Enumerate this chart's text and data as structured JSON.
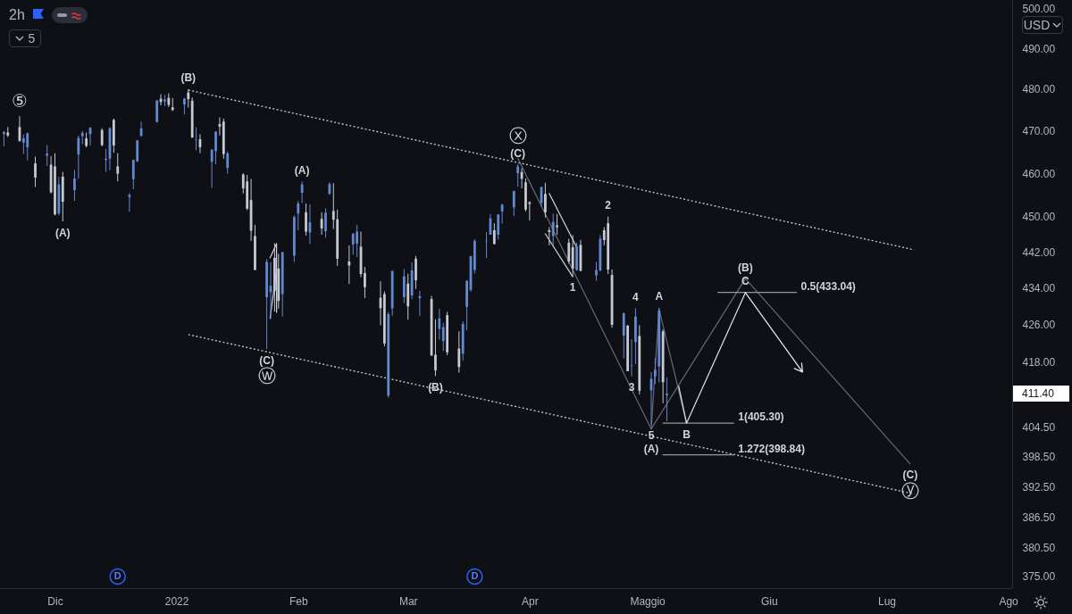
{
  "chart_data": {
    "type": "candlestick",
    "title": "2h",
    "ylabel": "USD",
    "log": "y",
    "xlim": [
      "2021-11-17",
      "2022-08-02"
    ],
    "xticks": [
      {
        "value": "2021-12-01",
        "label": "Dic"
      },
      {
        "value": "2022-01-01",
        "label": "2022"
      },
      {
        "value": "2022-02-01",
        "label": "Feb"
      },
      {
        "value": "2022-03-01",
        "label": "Mar"
      },
      {
        "value": "2022-04-01",
        "label": "Apr"
      },
      {
        "value": "2022-05-01",
        "label": "Maggio"
      },
      {
        "value": "2022-06-01",
        "label": "Giu"
      },
      {
        "value": "2022-07-01",
        "label": "Lug"
      },
      {
        "value": "2022-08-01",
        "label": "Ago"
      }
    ],
    "ylim": [
      372.8,
      502.2
    ],
    "yticks": [
      {
        "value": 375,
        "label": "375.00"
      },
      {
        "value": 380.5,
        "label": "380.50"
      },
      {
        "value": 386.5,
        "label": "386.50"
      },
      {
        "value": 392.5,
        "label": "392.50"
      },
      {
        "value": 398.5,
        "label": "398.50"
      },
      {
        "value": 404.5,
        "label": "404.50"
      },
      {
        "value": 418,
        "label": "418.00"
      },
      {
        "value": 426,
        "label": "426.00"
      },
      {
        "value": 434,
        "label": "434.00"
      },
      {
        "value": 442,
        "label": "442.00"
      },
      {
        "value": 450,
        "label": "450.00"
      },
      {
        "value": 460,
        "label": "460.00"
      },
      {
        "value": 470,
        "label": "470.00"
      },
      {
        "value": 480,
        "label": "480.00"
      },
      {
        "value": 490,
        "label": "490.00"
      },
      {
        "value": 500,
        "label": "500.00"
      }
    ],
    "x": [
      "2021-11-18",
      "2021-11-19",
      "2021-11-22",
      "2021-11-23",
      "2021-11-24",
      "2021-11-26",
      "2021-11-29",
      "2021-11-30",
      "2021-12-01",
      "2021-12-02",
      "2021-12-03",
      "2021-12-06",
      "2021-12-07",
      "2021-12-08",
      "2021-12-09",
      "2021-12-10",
      "2021-12-13",
      "2021-12-14",
      "2021-12-15",
      "2021-12-16",
      "2021-12-17",
      "2021-12-20",
      "2021-12-21",
      "2021-12-22",
      "2021-12-23",
      "2021-12-27",
      "2021-12-28",
      "2021-12-29",
      "2021-12-30",
      "2021-12-31",
      "2022-01-03",
      "2022-01-04",
      "2022-01-05",
      "2022-01-06",
      "2022-01-07",
      "2022-01-10",
      "2022-01-11",
      "2022-01-12",
      "2022-01-13",
      "2022-01-14",
      "2022-01-18",
      "2022-01-19",
      "2022-01-20",
      "2022-01-21",
      "2022-01-24",
      "2022-01-25",
      "2022-01-26",
      "2022-01-27",
      "2022-01-28",
      "2022-01-31",
      "2022-02-01",
      "2022-02-02",
      "2022-02-03",
      "2022-02-04",
      "2022-02-07",
      "2022-02-08",
      "2022-02-09",
      "2022-02-10",
      "2022-02-11",
      "2022-02-14",
      "2022-02-15",
      "2022-02-16",
      "2022-02-17",
      "2022-02-18",
      "2022-02-22",
      "2022-02-23",
      "2022-02-24",
      "2022-02-25",
      "2022-02-28",
      "2022-03-01",
      "2022-03-02",
      "2022-03-03",
      "2022-03-04",
      "2022-03-07",
      "2022-03-08",
      "2022-03-09",
      "2022-03-10",
      "2022-03-11",
      "2022-03-14",
      "2022-03-15",
      "2022-03-16",
      "2022-03-17",
      "2022-03-18",
      "2022-03-21",
      "2022-03-22",
      "2022-03-23",
      "2022-03-24",
      "2022-03-25",
      "2022-03-28",
      "2022-03-29",
      "2022-03-30",
      "2022-03-31",
      "2022-04-01",
      "2022-04-04",
      "2022-04-05",
      "2022-04-06",
      "2022-04-07",
      "2022-04-08",
      "2022-04-11",
      "2022-04-12",
      "2022-04-13",
      "2022-04-14",
      "2022-04-18",
      "2022-04-19",
      "2022-04-20",
      "2022-04-21",
      "2022-04-22",
      "2022-04-25",
      "2022-04-26",
      "2022-04-27",
      "2022-04-28",
      "2022-04-29",
      "2022-05-02",
      "2022-05-03",
      "2022-05-04",
      "2022-05-05",
      "2022-05-06"
    ],
    "ohlc": [
      [
        469.2,
        470.0,
        466.3,
        469.7
      ],
      [
        469.6,
        470.9,
        468.5,
        468.9
      ],
      [
        470.9,
        473.5,
        467.4,
        467.6
      ],
      [
        467.2,
        469.1,
        464.5,
        468.2
      ],
      [
        466.1,
        469.6,
        463.0,
        469.4
      ],
      [
        462.3,
        463.9,
        456.8,
        459.0
      ],
      [
        464.1,
        466.6,
        461.7,
        464.6
      ],
      [
        462.0,
        464.0,
        455.3,
        455.6
      ],
      [
        461.6,
        464.7,
        450.3,
        450.5
      ],
      [
        450.7,
        459.1,
        450.3,
        457.4
      ],
      [
        459.2,
        460.3,
        448.9,
        453.4
      ],
      [
        456.1,
        460.8,
        453.6,
        458.8
      ],
      [
        464.4,
        468.9,
        458.7,
        468.3
      ],
      [
        468.7,
        470.0,
        466.8,
        469.5
      ],
      [
        468.2,
        469.6,
        466.1,
        466.4
      ],
      [
        469.2,
        470.9,
        466.5,
        470.7
      ],
      [
        470.2,
        470.6,
        466.3,
        466.6
      ],
      [
        463.1,
        465.7,
        460.3,
        463.4
      ],
      [
        463.4,
        470.9,
        460.7,
        470.6
      ],
      [
        472.6,
        472.9,
        464.8,
        466.5
      ],
      [
        461.6,
        464.7,
        458.1,
        459.9
      ],
      [
        454.5,
        455.4,
        451.1,
        455.0
      ],
      [
        458.6,
        463.2,
        456.3,
        463.1
      ],
      [
        462.8,
        467.8,
        462.6,
        467.7
      ],
      [
        468.8,
        472.2,
        468.6,
        470.6
      ],
      [
        472.1,
        477.3,
        472.0,
        477.3
      ],
      [
        477.7,
        478.8,
        476.1,
        476.9
      ],
      [
        477.0,
        478.6,
        475.9,
        477.5
      ],
      [
        477.9,
        479.0,
        475.7,
        476.2
      ],
      [
        475.6,
        477.9,
        474.7,
        475.0
      ],
      [
        476.3,
        477.9,
        473.9,
        477.7
      ],
      [
        479.2,
        480.0,
        475.6,
        477.6
      ],
      [
        477.2,
        478.0,
        468.3,
        468.4
      ],
      [
        467.8,
        470.8,
        465.4,
        467.9
      ],
      [
        468.0,
        469.2,
        464.7,
        466.1
      ],
      [
        462.7,
        465.7,
        456.6,
        465.5
      ],
      [
        465.2,
        469.9,
        462.1,
        469.8
      ],
      [
        471.6,
        473.2,
        468.9,
        471.0
      ],
      [
        472.2,
        472.9,
        463.4,
        464.5
      ],
      [
        461.2,
        465.1,
        459.9,
        464.7
      ],
      [
        459.7,
        460.0,
        455.3,
        456.5
      ],
      [
        458.1,
        459.6,
        451.5,
        451.8
      ],
      [
        453.8,
        458.7,
        444.5,
        446.8
      ],
      [
        445.6,
        448.1,
        438.0,
        438.0
      ],
      [
        432.0,
        440.4,
        420.8,
        439.8
      ],
      [
        433.1,
        439.7,
        427.2,
        434.5
      ],
      [
        440.7,
        444.0,
        428.9,
        433.4
      ],
      [
        438.3,
        441.6,
        429.5,
        431.2
      ],
      [
        432.7,
        442.0,
        427.8,
        442.0
      ],
      [
        441.2,
        450.3,
        439.8,
        449.9
      ],
      [
        450.7,
        453.6,
        446.9,
        453.0
      ],
      [
        455.5,
        458.1,
        453.1,
        457.4
      ],
      [
        451.0,
        453.0,
        445.7,
        446.6
      ],
      [
        446.4,
        452.8,
        443.8,
        448.7
      ],
      [
        449.5,
        451.0,
        445.9,
        447.3
      ],
      [
        446.7,
        451.9,
        445.2,
        450.9
      ],
      [
        455.2,
        457.9,
        455.0,
        457.5
      ],
      [
        451.3,
        457.7,
        447.2,
        449.3
      ],
      [
        449.4,
        451.6,
        438.9,
        440.5
      ],
      [
        439.9,
        443.5,
        434.9,
        439.0
      ],
      [
        443.7,
        446.3,
        441.4,
        446.1
      ],
      [
        443.9,
        448.1,
        440.9,
        446.6
      ],
      [
        443.2,
        446.6,
        436.4,
        437.1
      ],
      [
        437.3,
        438.7,
        431.8,
        434.2
      ],
      [
        431.9,
        435.5,
        425.9,
        429.6
      ],
      [
        432.7,
        433.3,
        421.4,
        422.0
      ],
      [
        411.0,
        428.8,
        410.6,
        428.3
      ],
      [
        429.6,
        437.8,
        427.9,
        437.8
      ],
      [
        432.0,
        438.2,
        430.7,
        436.6
      ],
      [
        435.0,
        437.2,
        427.1,
        430.0
      ],
      [
        432.4,
        439.7,
        431.6,
        437.9
      ],
      [
        440.5,
        441.1,
        433.8,
        435.7
      ],
      [
        431.8,
        433.4,
        427.9,
        432.2
      ],
      [
        431.6,
        432.3,
        419.4,
        419.4
      ],
      [
        419.6,
        427.2,
        415.1,
        416.3
      ],
      [
        425.1,
        429.5,
        422.8,
        427.4
      ],
      [
        422.5,
        426.4,
        420.4,
        425.5
      ],
      [
        428.1,
        428.8,
        419.5,
        420.1
      ],
      [
        420.9,
        424.6,
        415.8,
        417.0
      ],
      [
        419.8,
        426.8,
        418.4,
        426.2
      ],
      [
        429.9,
        435.7,
        424.8,
        435.6
      ],
      [
        433.6,
        441.1,
        433.2,
        441.1
      ],
      [
        438.0,
        444.9,
        437.2,
        444.5
      ],
      [
        444.3,
        446.5,
        440.7,
        444.4
      ],
      [
        445.9,
        450.6,
        445.9,
        449.6
      ],
      [
        446.9,
        448.5,
        443.7,
        443.8
      ],
      [
        445.9,
        450.5,
        444.8,
        450.5
      ],
      [
        451.2,
        453.0,
        448.4,
        452.7
      ],
      [
        452.1,
        455.9,
        450.1,
        455.9
      ],
      [
        460.0,
        462.1,
        456.9,
        461.6
      ],
      [
        460.3,
        461.2,
        456.5,
        458.7
      ],
      [
        457.9,
        458.8,
        451.2,
        451.6
      ],
      [
        453.3,
        453.5,
        449.1,
        452.9
      ],
      [
        453.1,
        456.9,
        452.3,
        456.8
      ],
      [
        455.2,
        457.8,
        449.8,
        451.0
      ],
      [
        446.9,
        447.6,
        443.5,
        446.5
      ],
      [
        445.6,
        450.7,
        443.5,
        448.8
      ],
      [
        448.0,
        450.6,
        445.9,
        447.6
      ],
      [
        444.1,
        445.0,
        439.4,
        439.9
      ],
      [
        443.1,
        445.8,
        436.7,
        438.3
      ],
      [
        438.0,
        444.1,
        437.8,
        443.3
      ],
      [
        443.6,
        444.7,
        437.7,
        437.8
      ],
      [
        436.8,
        439.8,
        435.6,
        438.0
      ],
      [
        437.9,
        445.8,
        437.7,
        445.0
      ],
      [
        446.9,
        447.6,
        443.5,
        444.7
      ],
      [
        448.5,
        450.0,
        437.1,
        438.1
      ],
      [
        436.9,
        438.1,
        425.4,
        426.0
      ],
      [
        423.7,
        428.7,
        418.8,
        428.5
      ],
      [
        425.8,
        426.0,
        416.1,
        416.1
      ],
      [
        417.2,
        422.9,
        415.0,
        417.3
      ],
      [
        422.3,
        429.6,
        417.6,
        427.8
      ],
      [
        423.6,
        425.9,
        411.2,
        412.0
      ],
      [
        412.1,
        415.9,
        405.0,
        414.5
      ],
      [
        415.0,
        418.9,
        413.4,
        416.4
      ],
      [
        417.1,
        429.7,
        413.7,
        429.1
      ],
      [
        424.6,
        425.0,
        409.4,
        413.8
      ],
      [
        411.1,
        414.8,
        405.7,
        411.4
      ]
    ],
    "colors": [
      "#6389d1",
      "#c6c9d1",
      "#c6c9d1",
      "#6389d1",
      "#6389d1",
      "#c6c9d1",
      "#6389d1",
      "#c6c9d1",
      "#c6c9d1",
      "#6389d1",
      "#c6c9d1",
      "#6389d1",
      "#6389d1",
      "#6389d1",
      "#c6c9d1",
      "#6389d1",
      "#c6c9d1",
      "#6389d1",
      "#6389d1",
      "#c6c9d1",
      "#c6c9d1",
      "#6389d1",
      "#6389d1",
      "#6389d1",
      "#6389d1",
      "#6389d1",
      "#c6c9d1",
      "#6389d1",
      "#c6c9d1",
      "#c6c9d1",
      "#6389d1",
      "#c6c9d1",
      "#c6c9d1",
      "#6389d1",
      "#c6c9d1",
      "#6389d1",
      "#6389d1",
      "#c6c9d1",
      "#c6c9d1",
      "#6389d1",
      "#c6c9d1",
      "#c6c9d1",
      "#c6c9d1",
      "#c6c9d1",
      "#6389d1",
      "#6389d1",
      "#c6c9d1",
      "#c6c9d1",
      "#6389d1",
      "#6389d1",
      "#6389d1",
      "#6389d1",
      "#c6c9d1",
      "#6389d1",
      "#c6c9d1",
      "#6389d1",
      "#6389d1",
      "#c6c9d1",
      "#c6c9d1",
      "#c6c9d1",
      "#6389d1",
      "#6389d1",
      "#c6c9d1",
      "#c6c9d1",
      "#c6c9d1",
      "#c6c9d1",
      "#6389d1",
      "#6389d1",
      "#6389d1",
      "#c6c9d1",
      "#6389d1",
      "#c6c9d1",
      "#6389d1",
      "#c6c9d1",
      "#c6c9d1",
      "#6389d1",
      "#6389d1",
      "#c6c9d1",
      "#c6c9d1",
      "#6389d1",
      "#6389d1",
      "#6389d1",
      "#6389d1",
      "#6389d1",
      "#6389d1",
      "#c6c9d1",
      "#6389d1",
      "#6389d1",
      "#6389d1",
      "#6389d1",
      "#c6c9d1",
      "#c6c9d1",
      "#c6c9d1",
      "#6389d1",
      "#c6c9d1",
      "#c6c9d1",
      "#6389d1",
      "#c6c9d1",
      "#c6c9d1",
      "#c6c9d1",
      "#6389d1",
      "#c6c9d1",
      "#6389d1",
      "#6389d1",
      "#c6c9d1",
      "#c6c9d1",
      "#c6c9d1",
      "#6389d1",
      "#c6c9d1",
      "#6389d1",
      "#6389d1",
      "#c6c9d1",
      "#6389d1",
      "#6389d1",
      "#6389d1",
      "#c6c9d1",
      "#6389d1"
    ],
    "series": [
      {
        "type": "line",
        "x": [
          "2022-01-04",
          "2022-07-08"
        ],
        "values": [
          479.8,
          442.5
        ],
        "color": "#c0c3cb",
        "line_style": "dotted"
      },
      {
        "type": "line",
        "x": [
          "2022-01-04",
          "2022-07-08"
        ],
        "values": [
          423.9,
          391.0
        ],
        "color": "#c0c3cb",
        "line_style": "dotted"
      },
      {
        "type": "line",
        "x": [
          "2022-03-29",
          "2022-05-02",
          "2022-05-26",
          "2022-07-07"
        ],
        "values": [
          463.5,
          404.1,
          436.1,
          397.0
        ],
        "color": "#666a74"
      },
      {
        "type": "line",
        "x": [
          "2022-05-02",
          "2022-05-04",
          "2022-05-11"
        ],
        "values": [
          404.1,
          429.4,
          405.3
        ],
        "color": "#666a74"
      },
      {
        "type": "line",
        "x": [
          "2022-04-06",
          "2022-04-13"
        ],
        "values": [
          455.3,
          443.1
        ],
        "color": "#d1d4dc"
      },
      {
        "type": "line",
        "x": [
          "2022-04-05",
          "2022-04-12"
        ],
        "values": [
          446.1,
          436.5
        ],
        "color": "#d1d4dc"
      },
      {
        "type": "line",
        "x": [
          "2022-01-24T20:00",
          "2022-01-26T12:00",
          "2022-01-26T12:00"
        ],
        "values": [
          440.7,
          443.9,
          428.7
        ],
        "color": "#d1d4dc"
      },
      {
        "type": "line",
        "x": [
          "2022-01-24T20:00",
          "2022-01-26T12:00"
        ],
        "values": [
          427.4,
          437.8
        ],
        "color": "#d1d4dc"
      },
      {
        "type": "line",
        "x": [
          "2022-05-19",
          "2022-06-08"
        ],
        "values": [
          433.04,
          433.04
        ],
        "color": "#9598a1"
      },
      {
        "type": "line",
        "x": [
          "2022-05-05",
          "2022-05-23"
        ],
        "values": [
          405.3,
          405.3
        ],
        "color": "#9598a1"
      },
      {
        "type": "line",
        "x": [
          "2022-05-05",
          "2022-05-23"
        ],
        "values": [
          398.84,
          398.84
        ],
        "color": "#9598a1"
      },
      {
        "type": "line",
        "x": [
          "2022-05-09",
          "2022-05-11",
          "2022-05-26"
        ],
        "values": [
          413.0,
          405.3,
          433.0
        ],
        "color": "#e1e3ea"
      }
    ],
    "annotations": [
      {
        "text": "⑤",
        "x": "2021-11-22",
        "y": 473.5
      },
      {
        "text": "(A)",
        "x": "2021-12-03",
        "y": 448.9
      },
      {
        "text": "(B)",
        "x": "2022-01-04",
        "y": 480.0
      },
      {
        "text": "(C)",
        "x": "2022-01-24",
        "y": 420.8
      },
      {
        "text": "ⓦ",
        "x": "2022-01-24",
        "y": 420.8
      },
      {
        "text": "(A)",
        "x": "2022-02-02",
        "y": 458.1
      },
      {
        "text": "(B)",
        "x": "2022-03-08",
        "y": 415.1
      },
      {
        "text": "(C)",
        "x": "2022-03-29",
        "y": 462.1
      },
      {
        "text": "ⓧ",
        "x": "2022-03-29",
        "y": 462.1
      },
      {
        "text": "1",
        "x": "2022-04-12",
        "y": 436.7
      },
      {
        "text": "2",
        "x": "2022-04-21",
        "y": 450.0
      },
      {
        "text": "3",
        "x": "2022-04-27",
        "y": 415.0
      },
      {
        "text": "4",
        "x": "2022-04-28",
        "y": 429.6
      },
      {
        "text": "5",
        "x": "2022-05-02",
        "y": 405.0
      },
      {
        "text": "(A)",
        "x": "2022-05-02",
        "y": 405.0
      },
      {
        "text": "A",
        "x": "2022-05-04",
        "y": 429.7
      },
      {
        "text": "B",
        "x": "2022-05-11",
        "y": 405.3
      },
      {
        "text": "C",
        "x": "2022-05-26",
        "y": 433.0
      },
      {
        "text": "(B)",
        "x": "2022-05-26",
        "y": 436.1
      },
      {
        "text": "(C)",
        "x": "2022-07-07",
        "y": 397.0
      },
      {
        "text": "ⓨ",
        "x": "2022-07-07",
        "y": 397.0
      },
      {
        "text": "0.5(433.04)",
        "x": "2022-06-08",
        "y": 433.04
      },
      {
        "text": "1(405.30)",
        "x": "2022-05-23",
        "y": 405.3
      },
      {
        "text": "1.272(398.84)",
        "x": "2022-05-23",
        "y": 398.84
      },
      {
        "text": "D",
        "x": "2021-12-17"
      },
      {
        "text": "D",
        "x": "2022-03-18"
      },
      "5",
      "411.40"
    ]
  }
}
